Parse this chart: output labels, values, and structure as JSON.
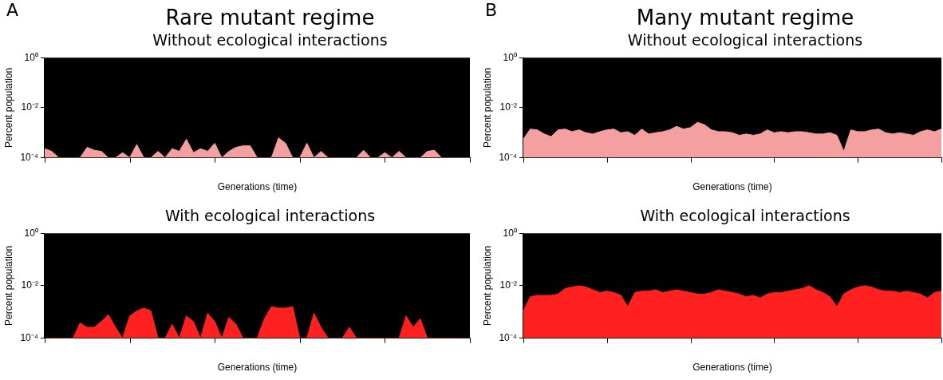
{
  "chart_data": [
    {
      "type": "area",
      "title": "Rare mutant regime",
      "subtitle": "Without ecological interactions",
      "xlabel": "Generations (time)",
      "ylabel": "Percent population",
      "annotations": [
        "A"
      ],
      "log": true,
      "tick_labels": "y",
      "categories": [
        null,
        null,
        null,
        null,
        null,
        null,
        null,
        null,
        null,
        null,
        null,
        null,
        null,
        null,
        null,
        null,
        null,
        null,
        null,
        null,
        null,
        null,
        null,
        null,
        null,
        null,
        null,
        null,
        null,
        null,
        null,
        null,
        null,
        null,
        null,
        null,
        null,
        null,
        null,
        null,
        null,
        null,
        null,
        null,
        null,
        null,
        null,
        null,
        null,
        null,
        null,
        null,
        null,
        null,
        null,
        null,
        null,
        null,
        null,
        null,
        null
      ],
      "ylim": [
        0.0001,
        1
      ],
      "yticks": [
        {
          "value": 0.0001,
          "label": "10⁻⁴"
        },
        {
          "value": 0.01,
          "label": "10⁻²"
        },
        {
          "value": 1,
          "label": "10⁰"
        }
      ],
      "series": [
        {
          "color": "#f4a0a0",
          "values": [
            0.00023,
            0.00018,
            0.0001,
            0.0001,
            0.0001,
            0.0001,
            0.00026,
            0.0002,
            0.00018,
            0.0001,
            0.0001,
            0.00016,
            0.0001,
            0.00034,
            0.0001,
            0.0001,
            0.00018,
            0.0001,
            0.00023,
            0.00018,
            0.00055,
            0.00016,
            0.00023,
            0.00018,
            0.00038,
            0.0001,
            0.00018,
            0.00026,
            0.0003,
            0.0003,
            0.0001,
            0.0001,
            0.0001,
            0.00062,
            0.00038,
            0.0001,
            0.0001,
            0.00038,
            0.0001,
            0.00018,
            0.0001,
            0.0001,
            0.0001,
            0.0001,
            0.0001,
            0.0002,
            0.0001,
            0.0001,
            0.00016,
            0.0001,
            0.00018,
            0.0001,
            0.0001,
            0.0001,
            0.00018,
            0.0002,
            0.0001,
            0.0001,
            0.0001,
            0.0001,
            0.0001
          ]
        }
      ]
    },
    {
      "type": "area",
      "title": "With ecological interactions",
      "xlabel": "Generations (time)",
      "ylabel": "Percent population",
      "log": true,
      "tick_labels": "y",
      "categories": [
        null,
        null,
        null,
        null,
        null,
        null,
        null,
        null,
        null,
        null,
        null,
        null,
        null,
        null,
        null,
        null,
        null,
        null,
        null,
        null,
        null,
        null,
        null,
        null,
        null,
        null,
        null,
        null,
        null,
        null,
        null,
        null,
        null,
        null,
        null,
        null,
        null,
        null,
        null,
        null,
        null,
        null,
        null,
        null,
        null,
        null,
        null,
        null,
        null,
        null,
        null,
        null,
        null,
        null,
        null,
        null,
        null,
        null,
        null,
        null,
        null
      ],
      "ylim": [
        0.0001,
        1
      ],
      "yticks": [
        {
          "value": 0.0001,
          "label": "10⁻⁴"
        },
        {
          "value": 0.01,
          "label": "10⁻²"
        },
        {
          "value": 1,
          "label": "10⁰"
        }
      ],
      "series": [
        {
          "color": "#ff2020",
          "values": [
            0.0001,
            0.0001,
            0.0001,
            0.0001,
            0.0001,
            0.00038,
            0.00026,
            0.00026,
            0.00043,
            0.00079,
            0.00026,
            0.0001,
            0.0007,
            0.0011,
            0.0014,
            0.0011,
            0.0001,
            0.0001,
            0.00034,
            0.0001,
            0.0007,
            0.00043,
            0.0001,
            0.00089,
            0.00043,
            0.0001,
            0.00062,
            0.00034,
            0.0001,
            0.0001,
            0.0001,
            0.00055,
            0.0016,
            0.0014,
            0.0014,
            0.0016,
            0.0001,
            0.0001,
            0.00089,
            0.00026,
            0.0001,
            0.0001,
            0.0001,
            0.00026,
            0.0001,
            0.0001,
            0.0001,
            0.0001,
            0.0001,
            0.0001,
            0.0001,
            0.0007,
            0.00026,
            0.00055,
            0.0001,
            0.0001,
            0.0001,
            0.0001,
            0.0001,
            0.0001,
            0.0001
          ]
        }
      ]
    },
    {
      "type": "area",
      "title": "Many mutant regime",
      "subtitle": "Without ecological interactions",
      "xlabel": "Generations (time)",
      "ylabel": "Percent population",
      "annotations": [
        "B"
      ],
      "log": true,
      "tick_labels": "y",
      "categories": [
        null,
        null,
        null,
        null,
        null,
        null,
        null,
        null,
        null,
        null,
        null,
        null,
        null,
        null,
        null,
        null,
        null,
        null,
        null,
        null,
        null,
        null,
        null,
        null,
        null,
        null,
        null,
        null,
        null,
        null,
        null,
        null,
        null,
        null,
        null,
        null,
        null,
        null,
        null,
        null,
        null,
        null,
        null,
        null,
        null,
        null,
        null,
        null,
        null,
        null,
        null,
        null,
        null,
        null,
        null,
        null,
        null,
        null,
        null,
        null,
        null
      ],
      "ylim": [
        0.0001,
        1
      ],
      "yticks": [
        {
          "value": 0.0001,
          "label": "10⁻⁴"
        },
        {
          "value": 0.01,
          "label": "10⁻²"
        },
        {
          "value": 1,
          "label": "10⁰"
        }
      ],
      "series": [
        {
          "color": "#f4a0a0",
          "values": [
            0.00055,
            0.0014,
            0.0013,
            0.00089,
            0.0007,
            0.0013,
            0.0014,
            0.0011,
            0.0013,
            0.001,
            0.00089,
            0.0011,
            0.0013,
            0.0014,
            0.001,
            0.0011,
            0.00079,
            0.0014,
            0.00089,
            0.001,
            0.0011,
            0.0013,
            0.0018,
            0.0014,
            0.0016,
            0.0026,
            0.0021,
            0.0013,
            0.0011,
            0.0011,
            0.001,
            0.00079,
            0.00089,
            0.00079,
            0.00089,
            0.0013,
            0.001,
            0.0011,
            0.001,
            0.0011,
            0.0011,
            0.001,
            0.00089,
            0.00089,
            0.001,
            0.00079,
            0.00018,
            0.0013,
            0.0011,
            0.0011,
            0.0013,
            0.0014,
            0.001,
            0.00089,
            0.001,
            0.00089,
            0.00079,
            0.0011,
            0.0013,
            0.0011,
            0.0014
          ]
        }
      ]
    },
    {
      "type": "area",
      "title": "With ecological interactions",
      "xlabel": "Generations (time)",
      "ylabel": "Percent population",
      "log": true,
      "tick_labels": "y",
      "categories": [
        null,
        null,
        null,
        null,
        null,
        null,
        null,
        null,
        null,
        null,
        null,
        null,
        null,
        null,
        null,
        null,
        null,
        null,
        null,
        null,
        null,
        null,
        null,
        null,
        null,
        null,
        null,
        null,
        null,
        null,
        null,
        null,
        null,
        null,
        null,
        null,
        null,
        null,
        null,
        null,
        null,
        null,
        null,
        null,
        null,
        null,
        null,
        null,
        null,
        null,
        null,
        null,
        null,
        null,
        null,
        null,
        null,
        null,
        null,
        null,
        null
      ],
      "ylim": [
        0.0001,
        1
      ],
      "yticks": [
        {
          "value": 0.0001,
          "label": "10⁻⁴"
        },
        {
          "value": 0.01,
          "label": "10⁻²"
        },
        {
          "value": 1,
          "label": "10⁰"
        }
      ],
      "series": [
        {
          "color": "#ff2020",
          "values": [
            0.0011,
            0.0038,
            0.0043,
            0.0043,
            0.0043,
            0.0048,
            0.0078,
            0.0089,
            0.01,
            0.0089,
            0.007,
            0.0055,
            0.0062,
            0.0055,
            0.0043,
            0.0016,
            0.0055,
            0.0062,
            0.0062,
            0.007,
            0.0055,
            0.0062,
            0.007,
            0.0062,
            0.0055,
            0.0048,
            0.0048,
            0.0055,
            0.007,
            0.0062,
            0.0055,
            0.0048,
            0.0038,
            0.0043,
            0.0034,
            0.0048,
            0.0055,
            0.0055,
            0.0062,
            0.007,
            0.0078,
            0.01,
            0.007,
            0.0055,
            0.0038,
            0.0016,
            0.0048,
            0.007,
            0.0089,
            0.01,
            0.0089,
            0.007,
            0.0062,
            0.0062,
            0.0055,
            0.0062,
            0.0055,
            0.0048,
            0.0034,
            0.0055,
            0.0062
          ]
        }
      ]
    }
  ]
}
